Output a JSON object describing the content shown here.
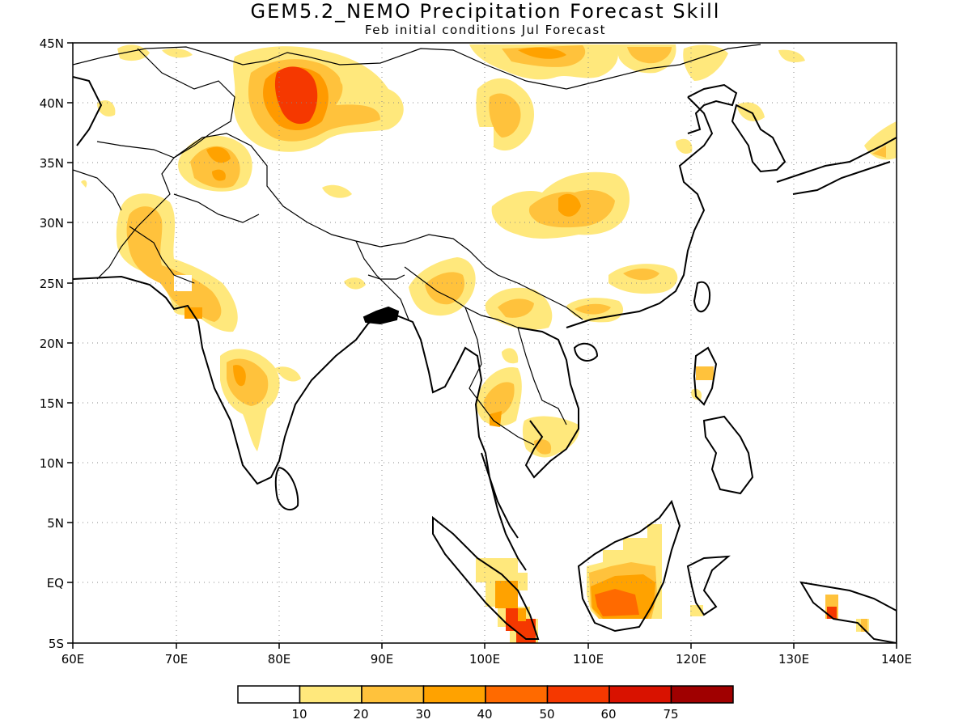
{
  "title": "GEM5.2_NEMO Precipitation Forecast Skill",
  "subtitle": "Feb initial conditions  Jul Forecast",
  "map": {
    "lon_range": [
      60,
      140
    ],
    "lat_range": [
      -5,
      45
    ],
    "lon_ticks": [
      "60E",
      "70E",
      "80E",
      "90E",
      "100E",
      "110E",
      "120E",
      "130E",
      "140E"
    ],
    "lat_ticks": [
      "45N",
      "40N",
      "35N",
      "30N",
      "25N",
      "20N",
      "15N",
      "10N",
      "5N",
      "EQ",
      "5S"
    ],
    "grid": "dotted"
  },
  "legend": {
    "labels": [
      "10",
      "20",
      "30",
      "40",
      "50",
      "60",
      "75"
    ],
    "colors": [
      "#ffffff",
      "#ffe87c",
      "#ffc23c",
      "#ffa200",
      "#ff6a00",
      "#f53800",
      "#d91200",
      "#a00000"
    ]
  },
  "chart_data": {
    "type": "heatmap",
    "variable": "precipitation forecast skill",
    "regions": [
      {
        "lon": 82,
        "lat": 41,
        "level": 5
      },
      {
        "lon": 85,
        "lat": 40,
        "level": 4
      },
      {
        "lon": 88,
        "lat": 39,
        "level": 3
      },
      {
        "lon": 73,
        "lat": 35.5,
        "level": 4
      },
      {
        "lon": 67,
        "lat": 29,
        "level": 3
      },
      {
        "lon": 73,
        "lat": 23.5,
        "level": 4
      },
      {
        "lon": 76,
        "lat": 17.5,
        "level": 4
      },
      {
        "lon": 103,
        "lat": 39,
        "level": 3
      },
      {
        "lon": 108,
        "lat": 31.5,
        "level": 3
      },
      {
        "lon": 97,
        "lat": 25,
        "level": 2
      },
      {
        "lon": 114,
        "lat": 25,
        "level": 3
      },
      {
        "lon": 101,
        "lat": 15,
        "level": 3
      },
      {
        "lon": 113,
        "lat": -1,
        "level": 5
      },
      {
        "lon": 104,
        "lat": -3.5,
        "level": 6
      },
      {
        "lon": 133.5,
        "lat": -2.5,
        "level": 6
      },
      {
        "lon": 106,
        "lat": 44,
        "level": 3
      }
    ]
  }
}
